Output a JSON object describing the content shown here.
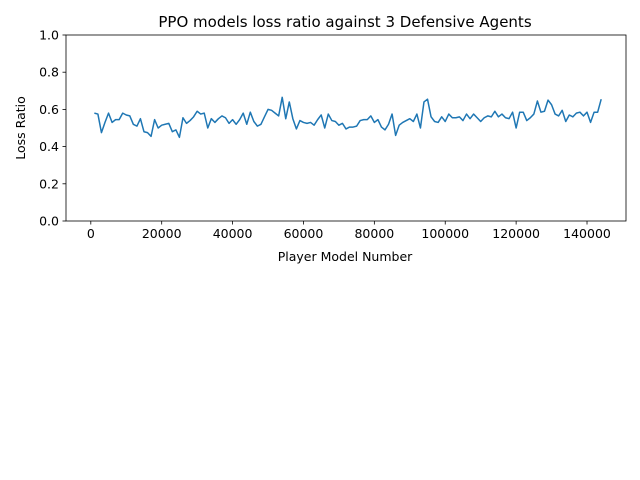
{
  "chart_data": {
    "type": "line",
    "title": "PPO models loss ratio against 3 Defensive Agents",
    "xlabel": "Player Model Number",
    "ylabel": "Loss Ratio",
    "xlim": [
      -7000,
      151000
    ],
    "ylim": [
      0.0,
      1.0
    ],
    "xticks": [
      0,
      20000,
      40000,
      60000,
      80000,
      100000,
      120000,
      140000
    ],
    "xtick_labels": [
      "0",
      "20000",
      "40000",
      "60000",
      "80000",
      "100000",
      "120000",
      "140000"
    ],
    "yticks": [
      0.0,
      0.2,
      0.4,
      0.6,
      0.8,
      1.0
    ],
    "ytick_labels": [
      "0.0",
      "0.2",
      "0.4",
      "0.6",
      "0.8",
      "1.0"
    ],
    "grid": false,
    "legend": false,
    "series": [
      {
        "color": "#1f77b4",
        "x": [
          1000,
          2000,
          3000,
          4000,
          5000,
          6000,
          7000,
          8000,
          9000,
          10000,
          11000,
          12000,
          13000,
          14000,
          15000,
          16000,
          17000,
          18000,
          19000,
          20000,
          21000,
          22000,
          23000,
          24000,
          25000,
          26000,
          27000,
          28000,
          29000,
          30000,
          31000,
          32000,
          33000,
          34000,
          35000,
          36000,
          37000,
          38000,
          39000,
          40000,
          41000,
          42000,
          43000,
          44000,
          45000,
          46000,
          47000,
          48000,
          49000,
          50000,
          51000,
          52000,
          53000,
          54000,
          55000,
          56000,
          57000,
          58000,
          59000,
          60000,
          61000,
          62000,
          63000,
          64000,
          65000,
          66000,
          67000,
          68000,
          69000,
          70000,
          71000,
          72000,
          73000,
          74000,
          75000,
          76000,
          77000,
          78000,
          79000,
          80000,
          81000,
          82000,
          83000,
          84000,
          85000,
          86000,
          87000,
          88000,
          89000,
          90000,
          91000,
          92000,
          93000,
          94000,
          95000,
          96000,
          97000,
          98000,
          99000,
          100000,
          101000,
          102000,
          103000,
          104000,
          105000,
          106000,
          107000,
          108000,
          109000,
          110000,
          111000,
          112000,
          113000,
          114000,
          115000,
          116000,
          117000,
          118000,
          119000,
          120000,
          121000,
          122000,
          123000,
          124000,
          125000,
          126000,
          127000,
          128000,
          129000,
          130000,
          131000,
          132000,
          133000,
          134000,
          135000,
          136000,
          137000,
          138000,
          139000,
          140000,
          141000,
          142000,
          143000,
          144000
        ],
        "values": [
          0.58,
          0.575,
          0.475,
          0.53,
          0.58,
          0.53,
          0.545,
          0.545,
          0.58,
          0.57,
          0.565,
          0.52,
          0.51,
          0.55,
          0.48,
          0.475,
          0.455,
          0.545,
          0.5,
          0.515,
          0.52,
          0.525,
          0.48,
          0.49,
          0.45,
          0.555,
          0.525,
          0.54,
          0.56,
          0.59,
          0.575,
          0.58,
          0.5,
          0.55,
          0.53,
          0.55,
          0.565,
          0.555,
          0.525,
          0.545,
          0.52,
          0.545,
          0.58,
          0.52,
          0.585,
          0.535,
          0.51,
          0.52,
          0.56,
          0.6,
          0.595,
          0.58,
          0.565,
          0.665,
          0.55,
          0.64,
          0.55,
          0.495,
          0.54,
          0.53,
          0.525,
          0.53,
          0.515,
          0.545,
          0.57,
          0.5,
          0.575,
          0.54,
          0.535,
          0.515,
          0.525,
          0.495,
          0.505,
          0.505,
          0.51,
          0.54,
          0.545,
          0.545,
          0.565,
          0.53,
          0.545,
          0.505,
          0.49,
          0.52,
          0.575,
          0.46,
          0.515,
          0.53,
          0.54,
          0.55,
          0.535,
          0.575,
          0.5,
          0.64,
          0.655,
          0.56,
          0.535,
          0.53,
          0.56,
          0.535,
          0.575,
          0.555,
          0.555,
          0.56,
          0.54,
          0.575,
          0.55,
          0.575,
          0.555,
          0.535,
          0.555,
          0.565,
          0.56,
          0.59,
          0.56,
          0.575,
          0.555,
          0.55,
          0.585,
          0.5,
          0.585,
          0.585,
          0.54,
          0.555,
          0.575,
          0.645,
          0.585,
          0.59,
          0.65,
          0.625,
          0.575,
          0.565,
          0.595,
          0.535,
          0.57,
          0.56,
          0.58,
          0.585,
          0.565,
          0.585,
          0.53,
          0.585,
          0.585,
          0.655
        ]
      }
    ]
  }
}
